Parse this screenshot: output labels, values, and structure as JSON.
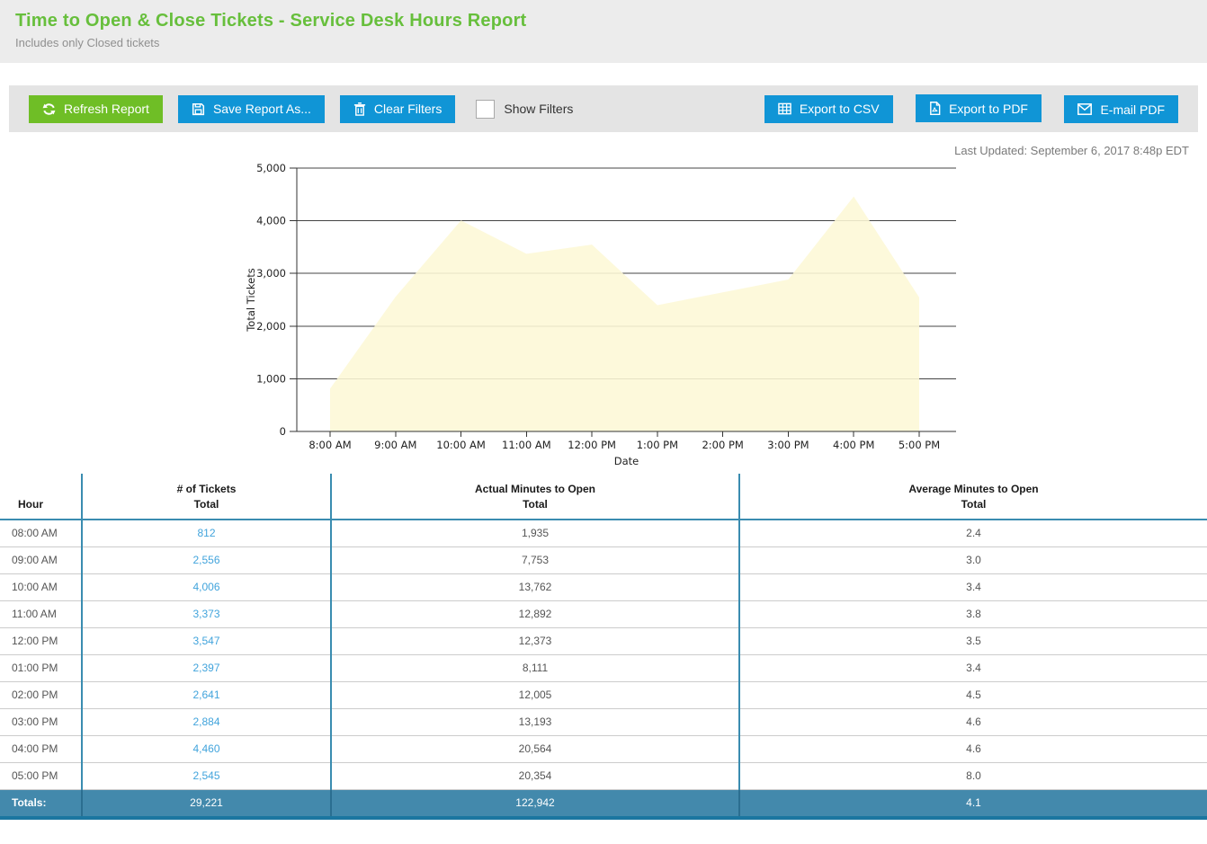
{
  "header": {
    "title": "Time to Open & Close Tickets - Service Desk Hours Report",
    "subtitle": "Includes only Closed tickets"
  },
  "toolbar": {
    "refresh_label": "Refresh Report",
    "save_label": "Save Report As...",
    "clear_label": "Clear Filters",
    "show_filters_label": "Show Filters",
    "show_filters_checked": false,
    "export_csv_label": "Export to CSV",
    "export_pdf_label": "Export to PDF",
    "email_pdf_label": "E-mail PDF"
  },
  "last_updated": "Last Updated: September 6, 2017 8:48p EDT",
  "chart_data": {
    "type": "area",
    "x": [
      "8:00 AM",
      "9:00 AM",
      "10:00 AM",
      "11:00 AM",
      "12:00 PM",
      "1:00 PM",
      "2:00 PM",
      "3:00 PM",
      "4:00 PM",
      "5:00 PM"
    ],
    "values": [
      812,
      2556,
      4006,
      3373,
      3547,
      2397,
      2641,
      2884,
      4460,
      2545
    ],
    "title": "",
    "xlabel": "Date",
    "ylabel": "Total Tickets",
    "ylim": [
      0,
      5000
    ],
    "yticks": [
      0,
      1000,
      2000,
      3000,
      4000,
      5000
    ],
    "ytick_labels": [
      "0",
      "1,000",
      "2,000",
      "3,000",
      "4,000",
      "5,000"
    ],
    "grid": true,
    "legend": "none",
    "fill_color": "#FDF8D6"
  },
  "table": {
    "group_headers": [
      "# of Tickets",
      "Actual Minutes to Open",
      "Average Minutes to Open"
    ],
    "sub_headers": {
      "hour": "Hour",
      "total": "Total"
    },
    "rows": [
      {
        "hour": "08:00 AM",
        "tickets": "812",
        "actual": "1,935",
        "avg": "2.4"
      },
      {
        "hour": "09:00 AM",
        "tickets": "2,556",
        "actual": "7,753",
        "avg": "3.0"
      },
      {
        "hour": "10:00 AM",
        "tickets": "4,006",
        "actual": "13,762",
        "avg": "3.4"
      },
      {
        "hour": "11:00 AM",
        "tickets": "3,373",
        "actual": "12,892",
        "avg": "3.8"
      },
      {
        "hour": "12:00 PM",
        "tickets": "3,547",
        "actual": "12,373",
        "avg": "3.5"
      },
      {
        "hour": "01:00 PM",
        "tickets": "2,397",
        "actual": "8,111",
        "avg": "3.4"
      },
      {
        "hour": "02:00 PM",
        "tickets": "2,641",
        "actual": "12,005",
        "avg": "4.5"
      },
      {
        "hour": "03:00 PM",
        "tickets": "2,884",
        "actual": "13,193",
        "avg": "4.6"
      },
      {
        "hour": "04:00 PM",
        "tickets": "4,460",
        "actual": "20,564",
        "avg": "4.6"
      },
      {
        "hour": "05:00 PM",
        "tickets": "2,545",
        "actual": "20,354",
        "avg": "8.0"
      }
    ],
    "totals": {
      "label": "Totals:",
      "tickets": "29,221",
      "actual": "122,942",
      "avg": "4.1"
    }
  },
  "colors": {
    "title_green": "#67bf3c",
    "button_green": "#6fbe26",
    "button_blue": "#1095d6",
    "link_blue": "#42a4dc",
    "totals_bg": "#4389ac",
    "table_line_blue": "#3a8cb0",
    "area_fill": "#FDF8D6"
  }
}
